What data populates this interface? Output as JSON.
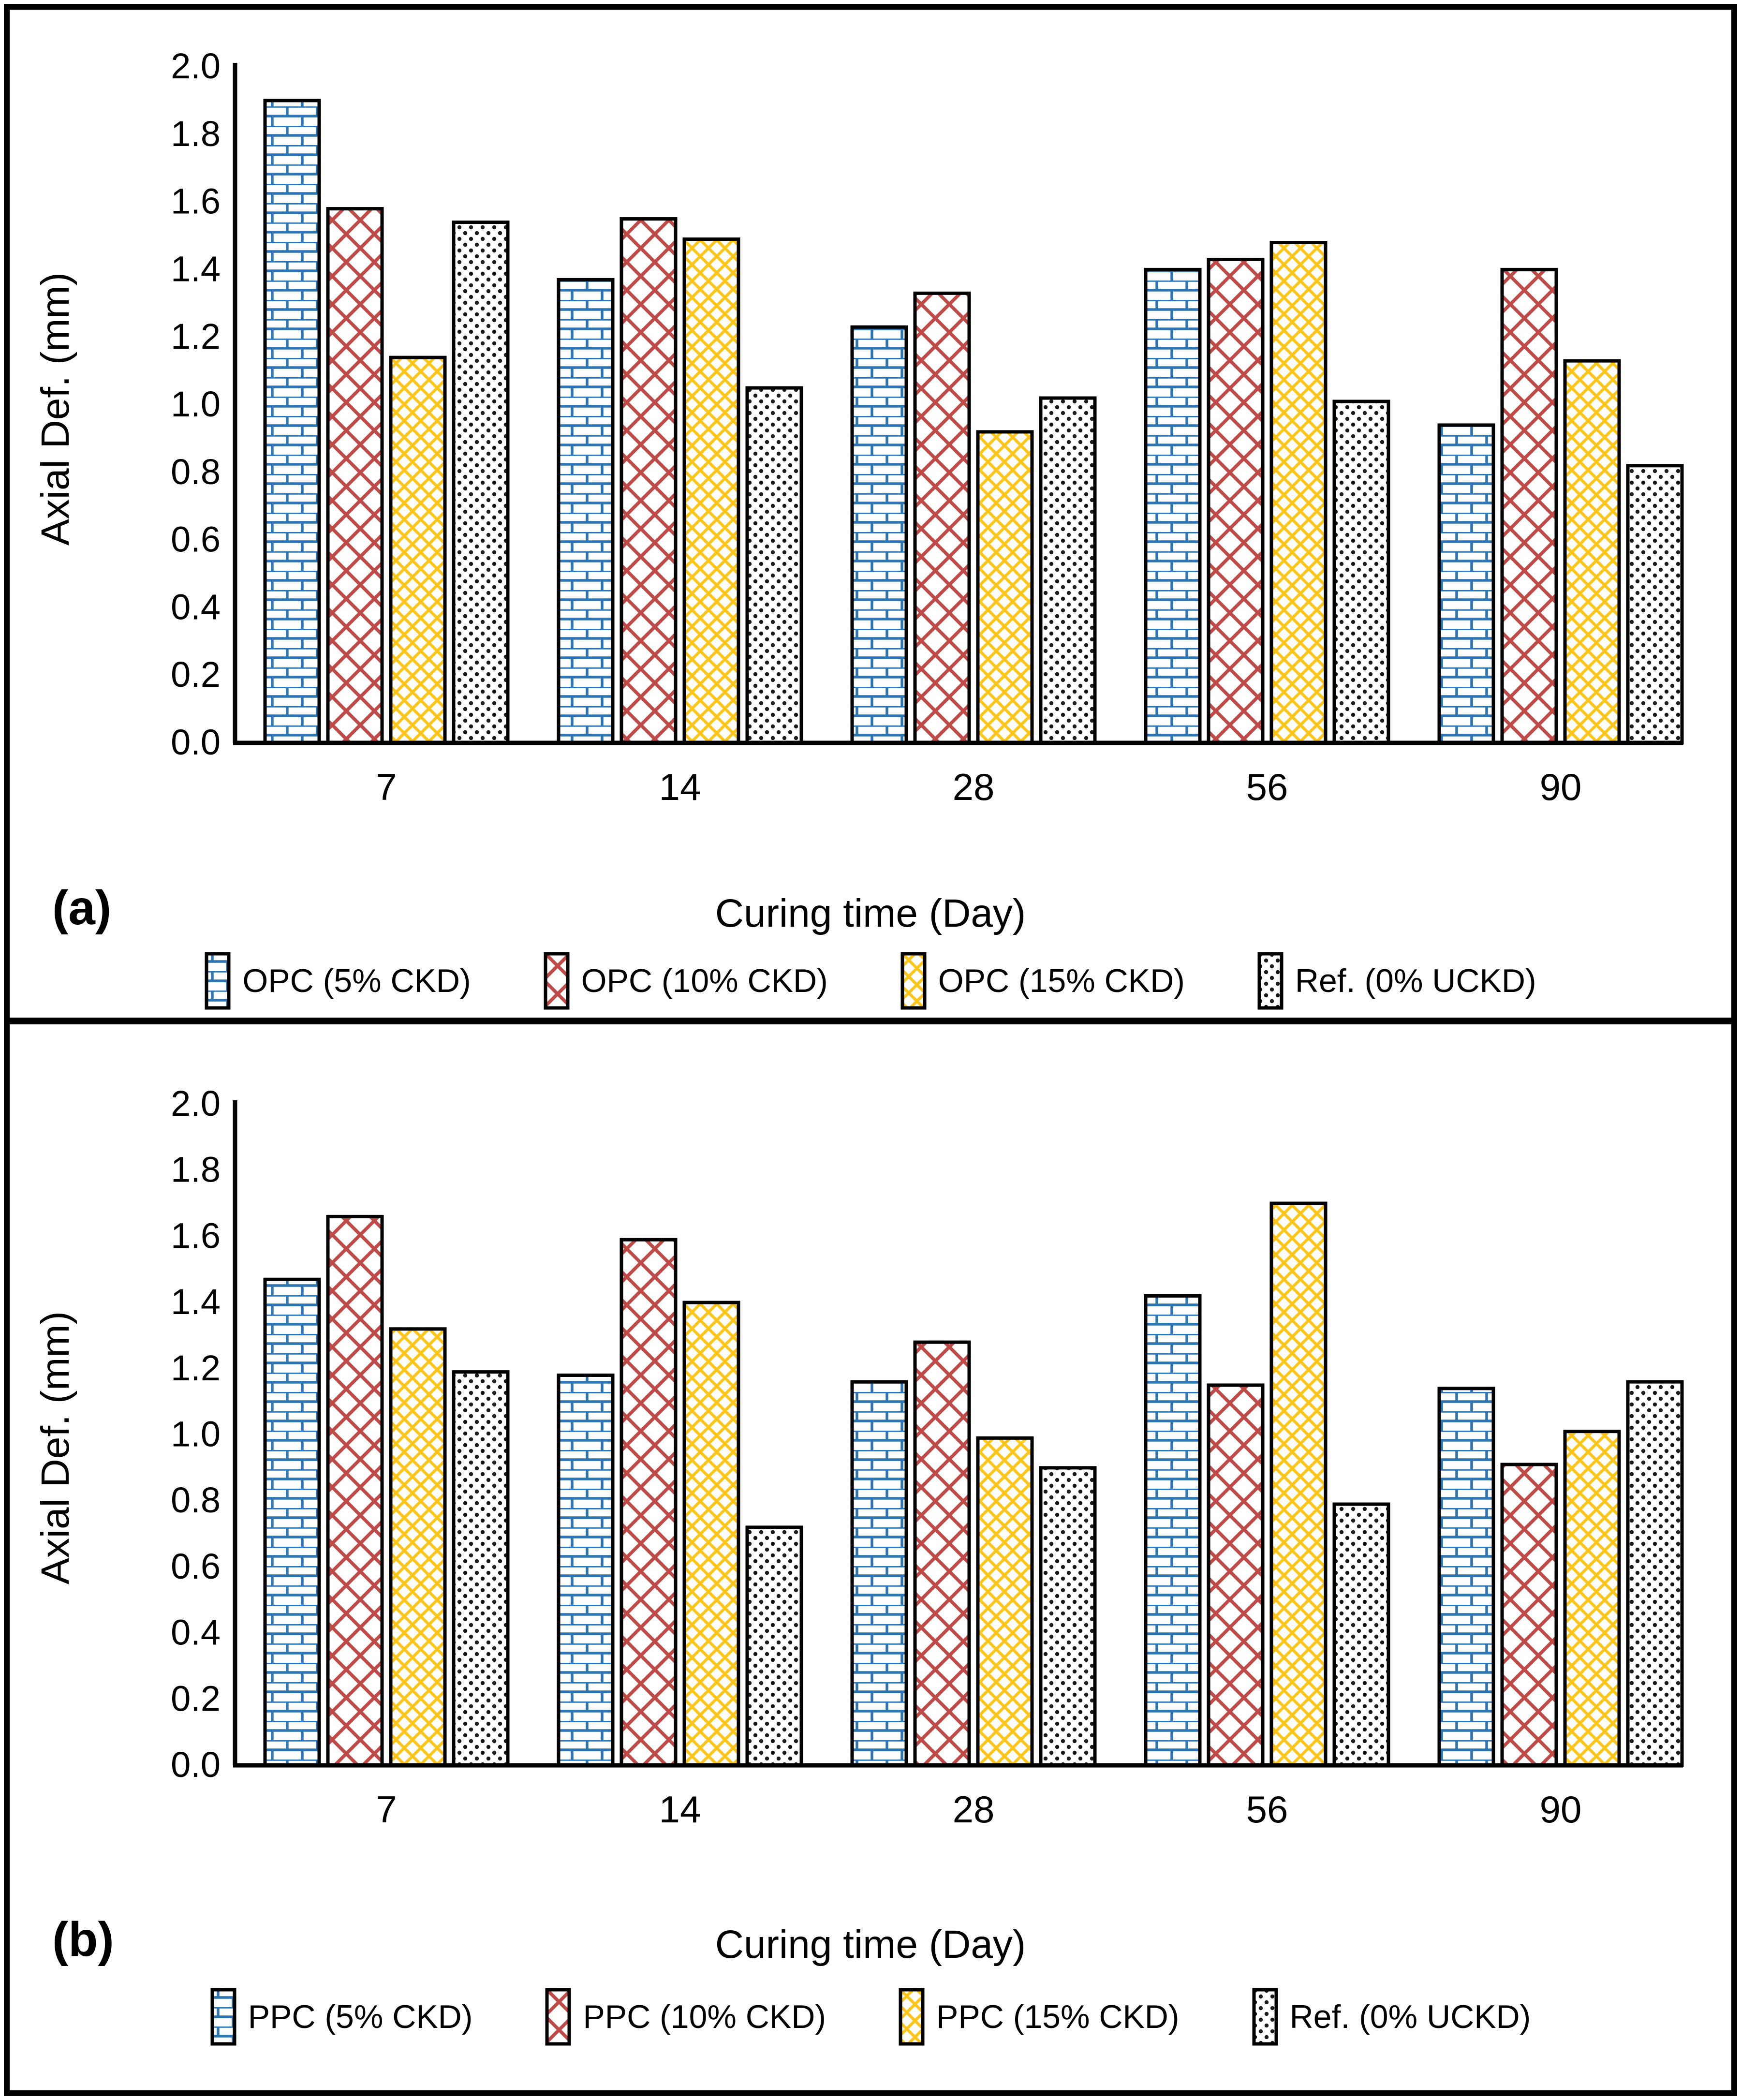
{
  "figure_border_color": "#000000",
  "background_color": "#ffffff",
  "chart_data": [
    {
      "type": "bar",
      "panel_letter": "(a)",
      "ylabel": "Axial Def. (mm)",
      "xlabel": "Curing time (Day)",
      "categories": [
        "7",
        "14",
        "28",
        "56",
        "90"
      ],
      "ylim": [
        0.0,
        2.0
      ],
      "ytick_step": 0.2,
      "grid": false,
      "legend_position": "bottom",
      "series": [
        {
          "name": "OPC (5% CKD)",
          "pattern": "brick",
          "color": "#2E75B6",
          "values": [
            1.9,
            1.37,
            1.23,
            1.4,
            0.94
          ]
        },
        {
          "name": "OPC (10% CKD)",
          "pattern": "crosshatch",
          "color": "#BE4B48",
          "values": [
            1.58,
            1.55,
            1.33,
            1.43,
            1.4
          ]
        },
        {
          "name": "OPC (15% CKD)",
          "pattern": "diamond",
          "color": "#FFC000",
          "values": [
            1.14,
            1.49,
            0.92,
            1.48,
            1.13
          ]
        },
        {
          "name": "Ref. (0% UCKD)",
          "pattern": "dots",
          "color": "#1A1A1A",
          "values": [
            1.54,
            1.05,
            1.02,
            1.01,
            0.82
          ]
        }
      ]
    },
    {
      "type": "bar",
      "panel_letter": "(b)",
      "ylabel": "Axial Def. (mm)",
      "xlabel": "Curing time (Day)",
      "categories": [
        "7",
        "14",
        "28",
        "56",
        "90"
      ],
      "ylim": [
        0.0,
        2.0
      ],
      "ytick_step": 0.2,
      "grid": false,
      "legend_position": "bottom",
      "series": [
        {
          "name": "PPC (5% CKD)",
          "pattern": "brick",
          "color": "#2E75B6",
          "values": [
            1.47,
            1.18,
            1.16,
            1.42,
            1.14
          ]
        },
        {
          "name": "PPC (10% CKD)",
          "pattern": "crosshatch",
          "color": "#BE4B48",
          "values": [
            1.66,
            1.59,
            1.28,
            1.15,
            0.91
          ]
        },
        {
          "name": "PPC (15% CKD)",
          "pattern": "diamond",
          "color": "#FFC000",
          "values": [
            1.32,
            1.4,
            0.99,
            1.7,
            1.01
          ]
        },
        {
          "name": "Ref. (0% UCKD)",
          "pattern": "dots",
          "color": "#1A1A1A",
          "values": [
            1.19,
            0.72,
            0.9,
            0.79,
            1.16
          ]
        }
      ]
    }
  ]
}
